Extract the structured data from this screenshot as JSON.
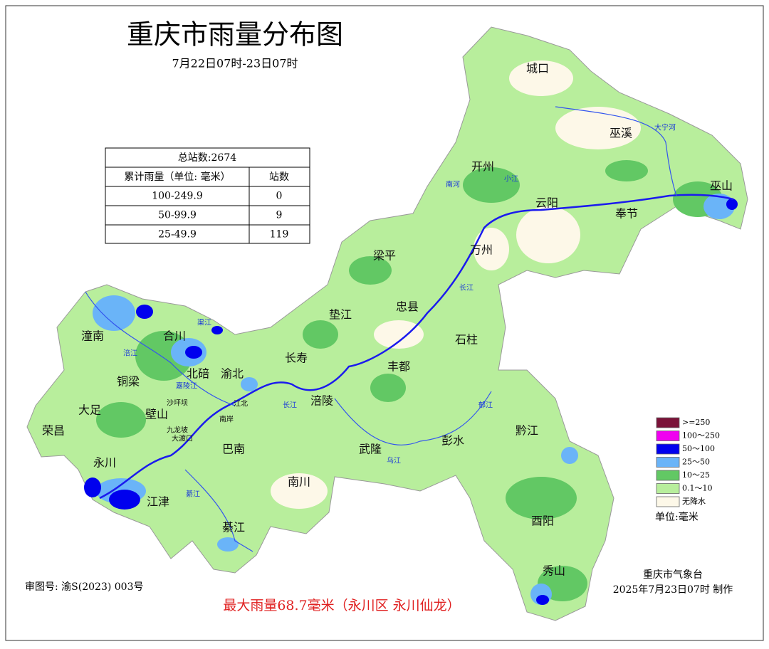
{
  "title": "重庆市雨量分布图",
  "subtitle": "7月22日07时-23日07时",
  "table": {
    "total": "总站数:2674",
    "header": [
      "累计雨量（单位: 毫米）",
      "站数"
    ],
    "rows": [
      [
        "100-249.9",
        0
      ],
      [
        "50-99.9",
        9
      ],
      [
        "25-49.9",
        119
      ]
    ]
  },
  "districts": [
    "城口",
    "巫溪",
    "开州",
    "云阳",
    "巫山",
    "奉节",
    "梁平",
    "万州",
    "忠县",
    "垫江",
    "石柱",
    "潼南",
    "合川",
    "长寿",
    "丰都",
    "北碚",
    "渝北",
    "铜梁",
    "大足",
    "壁山",
    "涪陵",
    "荣昌",
    "巴南",
    "武隆",
    "彭水",
    "黔江",
    "永川",
    "南川",
    "江津",
    "酉阳",
    "綦江",
    "秀山",
    "沙坪坝",
    "九龙坡",
    "大渡口",
    "江北",
    "南岸"
  ],
  "rivers": [
    "大宁河",
    "小江",
    "南河",
    "长江",
    "涪江",
    "渠江",
    "嘉陵江",
    "长江",
    "乌江",
    "郁江",
    "綦江"
  ],
  "legend": {
    "items": [
      {
        "label": ">=250",
        "color": "#7a1238"
      },
      {
        "label": "100～250",
        "color": "#f000f0"
      },
      {
        "label": "50～100",
        "color": "#0000ee"
      },
      {
        "label": "25～50",
        "color": "#6ab4f8"
      },
      {
        "label": "10～25",
        "color": "#62c864"
      },
      {
        "label": "0.1～10",
        "color": "#b8ee9c"
      },
      {
        "label": "无降水",
        "color": "#fdf8e8"
      }
    ],
    "unit": "单位:毫米"
  },
  "footer": {
    "review": "审图号: 渝S(2023) 003号",
    "max": "最大雨量68.7毫米（永川区 永川仙龙）",
    "org": "重庆市气象台",
    "made": "2025年7月23日07时 制作"
  }
}
